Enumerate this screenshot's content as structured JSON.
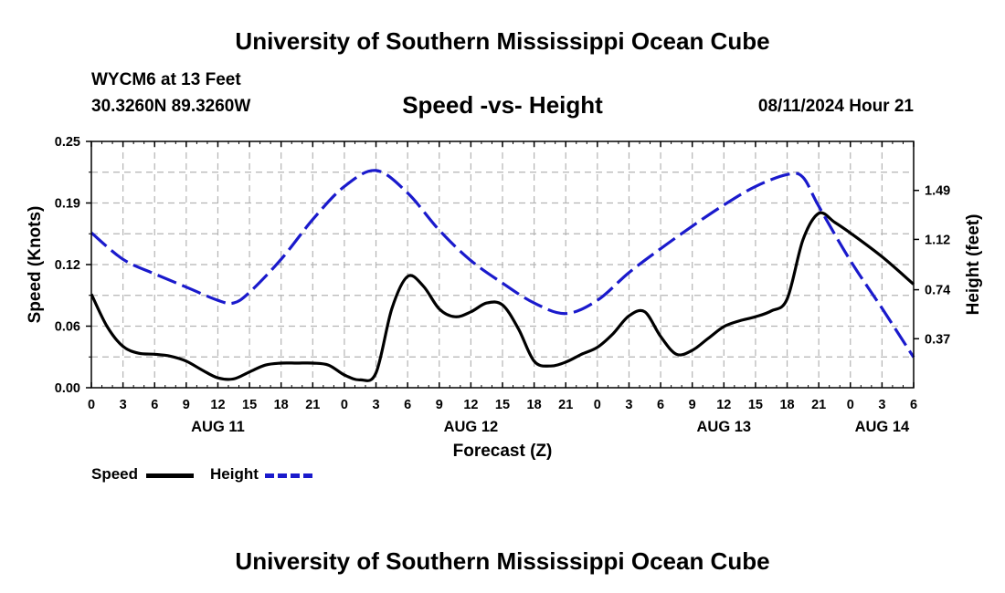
{
  "header": {
    "title": "University of Southern Mississippi Ocean Cube",
    "station": "WYCM6 at 13 Feet",
    "coords": "30.3260N  89.3260W",
    "datetime": "08/11/2024 Hour 21",
    "footer_title": "University of Southern Mississippi Ocean Cube"
  },
  "chart_data": {
    "type": "line",
    "title": "Speed -vs- Height",
    "xlabel": "Forecast (Z)",
    "ylabel_left": "Speed (Knots)",
    "ylabel_right": "Height (feet)",
    "x_unit": "hours since AUG 11 00Z",
    "xlim": [
      0,
      78
    ],
    "ylim_left": [
      0,
      0.25
    ],
    "ylim_right": [
      0,
      1.86
    ],
    "x_ticks": [
      {
        "x": 0,
        "label": "0"
      },
      {
        "x": 3,
        "label": "3"
      },
      {
        "x": 6,
        "label": "6"
      },
      {
        "x": 9,
        "label": "9"
      },
      {
        "x": 12,
        "label": "12"
      },
      {
        "x": 15,
        "label": "15"
      },
      {
        "x": 18,
        "label": "18"
      },
      {
        "x": 21,
        "label": "21"
      },
      {
        "x": 24,
        "label": "0"
      },
      {
        "x": 27,
        "label": "3"
      },
      {
        "x": 30,
        "label": "6"
      },
      {
        "x": 33,
        "label": "9"
      },
      {
        "x": 36,
        "label": "12"
      },
      {
        "x": 39,
        "label": "15"
      },
      {
        "x": 42,
        "label": "18"
      },
      {
        "x": 45,
        "label": "21"
      },
      {
        "x": 48,
        "label": "0"
      },
      {
        "x": 51,
        "label": "3"
      },
      {
        "x": 54,
        "label": "6"
      },
      {
        "x": 57,
        "label": "9"
      },
      {
        "x": 60,
        "label": "12"
      },
      {
        "x": 63,
        "label": "15"
      },
      {
        "x": 66,
        "label": "18"
      },
      {
        "x": 69,
        "label": "21"
      },
      {
        "x": 72,
        "label": "0"
      },
      {
        "x": 75,
        "label": "3"
      },
      {
        "x": 78,
        "label": "6"
      }
    ],
    "date_labels": [
      {
        "x": 12,
        "label": "AUG 11"
      },
      {
        "x": 36,
        "label": "AUG 12"
      },
      {
        "x": 60,
        "label": "AUG 13"
      },
      {
        "x": 75,
        "label": "AUG 14"
      }
    ],
    "y_ticks_left": [
      {
        "value": 0,
        "label": "0.00"
      },
      {
        "value": 0.0625,
        "label": "0.06"
      },
      {
        "value": 0.125,
        "label": "0.12"
      },
      {
        "value": 0.1875,
        "label": "0.19"
      },
      {
        "value": 0.25,
        "label": "0.25"
      }
    ],
    "y_ticks_right": [
      {
        "value": 0.37,
        "label": "0.37"
      },
      {
        "value": 0.74,
        "label": "0.74"
      },
      {
        "value": 1.12,
        "label": "1.12"
      },
      {
        "value": 1.49,
        "label": "1.49"
      }
    ],
    "series": [
      {
        "name": "Speed",
        "axis": "left",
        "color": "#000000",
        "style": "solid",
        "x": [
          0,
          1.5,
          3,
          4.5,
          6,
          7.5,
          9,
          10.5,
          12,
          13.5,
          15,
          16.5,
          18,
          19.5,
          21,
          22.5,
          24,
          25.5,
          27,
          28.5,
          30,
          31.5,
          33,
          34.5,
          36,
          37.5,
          39,
          40.5,
          42,
          43.5,
          45,
          46.5,
          48,
          49.5,
          51,
          52.5,
          54,
          55.5,
          57,
          58.5,
          60,
          61.5,
          63,
          64.5,
          66,
          67.5,
          69,
          70.5,
          72,
          75,
          78
        ],
        "values": [
          0.095,
          0.062,
          0.042,
          0.035,
          0.034,
          0.032,
          0.027,
          0.018,
          0.01,
          0.009,
          0.016,
          0.023,
          0.025,
          0.025,
          0.025,
          0.023,
          0.013,
          0.008,
          0.015,
          0.08,
          0.113,
          0.103,
          0.08,
          0.072,
          0.077,
          0.086,
          0.084,
          0.06,
          0.027,
          0.022,
          0.026,
          0.034,
          0.041,
          0.055,
          0.073,
          0.077,
          0.052,
          0.034,
          0.038,
          0.05,
          0.062,
          0.068,
          0.072,
          0.078,
          0.09,
          0.15,
          0.177,
          0.168,
          0.157,
          0.133,
          0.105
        ]
      },
      {
        "name": "Height",
        "axis": "right",
        "color": "#1a1acc",
        "style": "dashed",
        "x": [
          0,
          3,
          6,
          9,
          12,
          13.5,
          15,
          18,
          21,
          24,
          27,
          30,
          33,
          36,
          39,
          42,
          45,
          48,
          51,
          54,
          57,
          60,
          63,
          66,
          67.5,
          69,
          72,
          75,
          78
        ],
        "values": [
          1.17,
          0.97,
          0.86,
          0.76,
          0.66,
          0.64,
          0.72,
          0.97,
          1.27,
          1.52,
          1.64,
          1.47,
          1.19,
          0.96,
          0.79,
          0.64,
          0.56,
          0.66,
          0.87,
          1.05,
          1.22,
          1.38,
          1.52,
          1.61,
          1.59,
          1.37,
          0.96,
          0.6,
          0.23
        ]
      }
    ],
    "legend": [
      {
        "label": "Speed",
        "color": "#000000",
        "style": "solid"
      },
      {
        "label": "Height",
        "color": "#1a1acc",
        "style": "dashed"
      }
    ],
    "legend_position": "bottom-left",
    "grid": true
  }
}
